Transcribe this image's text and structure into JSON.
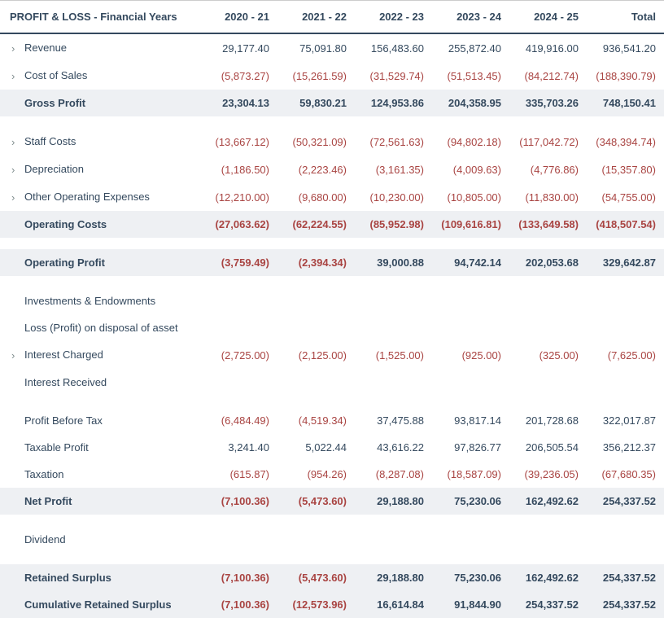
{
  "header": [
    "PROFIT & LOSS - Financial Years",
    "2020 - 21",
    "2021 - 22",
    "2022 - 23",
    "2023 - 24",
    "2024 - 25",
    "Total"
  ],
  "rows": [
    {
      "label": "Revenue",
      "expandable": true,
      "bold": false,
      "shade": false,
      "vals": [
        "29,177.40",
        "75,091.80",
        "156,483.60",
        "255,872.40",
        "419,916.00",
        "936,541.20"
      ],
      "neg": [
        false,
        false,
        false,
        false,
        false,
        false
      ]
    },
    {
      "label": "Cost of Sales",
      "expandable": true,
      "bold": false,
      "shade": false,
      "vals": [
        "(5,873.27)",
        "(15,261.59)",
        "(31,529.74)",
        "(51,513.45)",
        "(84,212.74)",
        "(188,390.79)"
      ],
      "neg": [
        true,
        true,
        true,
        true,
        true,
        true
      ]
    },
    {
      "label": "Gross Profit",
      "expandable": false,
      "bold": true,
      "shade": true,
      "vals": [
        "23,304.13",
        "59,830.21",
        "124,953.86",
        "204,358.95",
        "335,703.26",
        "748,150.41"
      ],
      "neg": [
        false,
        false,
        false,
        false,
        false,
        false
      ]
    },
    {
      "spacer": true
    },
    {
      "label": "Staff Costs",
      "expandable": true,
      "bold": false,
      "shade": false,
      "vals": [
        "(13,667.12)",
        "(50,321.09)",
        "(72,561.63)",
        "(94,802.18)",
        "(117,042.72)",
        "(348,394.74)"
      ],
      "neg": [
        true,
        true,
        true,
        true,
        true,
        true
      ]
    },
    {
      "label": "Depreciation",
      "expandable": true,
      "bold": false,
      "shade": false,
      "vals": [
        "(1,186.50)",
        "(2,223.46)",
        "(3,161.35)",
        "(4,009.63)",
        "(4,776.86)",
        "(15,357.80)"
      ],
      "neg": [
        true,
        true,
        true,
        true,
        true,
        true
      ]
    },
    {
      "label": "Other Operating Expenses",
      "expandable": true,
      "bold": false,
      "shade": false,
      "vals": [
        "(12,210.00)",
        "(9,680.00)",
        "(10,230.00)",
        "(10,805.00)",
        "(11,830.00)",
        "(54,755.00)"
      ],
      "neg": [
        true,
        true,
        true,
        true,
        true,
        true
      ]
    },
    {
      "label": "Operating Costs",
      "expandable": false,
      "bold": true,
      "shade": true,
      "vals": [
        "(27,063.62)",
        "(62,224.55)",
        "(85,952.98)",
        "(109,616.81)",
        "(133,649.58)",
        "(418,507.54)"
      ],
      "neg": [
        true,
        true,
        true,
        true,
        true,
        true
      ]
    },
    {
      "spacer": true
    },
    {
      "label": "Operating Profit",
      "expandable": false,
      "bold": true,
      "shade": true,
      "vals": [
        "(3,759.49)",
        "(2,394.34)",
        "39,000.88",
        "94,742.14",
        "202,053.68",
        "329,642.87"
      ],
      "neg": [
        true,
        true,
        false,
        false,
        false,
        false
      ]
    },
    {
      "spacer": true
    },
    {
      "label": "Investments & Endowments",
      "expandable": false,
      "bold": false,
      "shade": false,
      "vals": [
        "",
        "",
        "",
        "",
        "",
        ""
      ],
      "neg": [
        false,
        false,
        false,
        false,
        false,
        false
      ]
    },
    {
      "label": "Loss (Profit) on disposal of asset",
      "expandable": false,
      "bold": false,
      "shade": false,
      "vals": [
        "",
        "",
        "",
        "",
        "",
        ""
      ],
      "neg": [
        false,
        false,
        false,
        false,
        false,
        false
      ]
    },
    {
      "label": "Interest Charged",
      "expandable": true,
      "bold": false,
      "shade": false,
      "vals": [
        "(2,725.00)",
        "(2,125.00)",
        "(1,525.00)",
        "(925.00)",
        "(325.00)",
        "(7,625.00)"
      ],
      "neg": [
        true,
        true,
        true,
        true,
        true,
        true
      ]
    },
    {
      "label": "Interest Received",
      "expandable": false,
      "bold": false,
      "shade": false,
      "vals": [
        "",
        "",
        "",
        "",
        "",
        ""
      ],
      "neg": [
        false,
        false,
        false,
        false,
        false,
        false
      ]
    },
    {
      "spacer": true
    },
    {
      "label": "Profit Before Tax",
      "expandable": false,
      "bold": false,
      "shade": false,
      "vals": [
        "(6,484.49)",
        "(4,519.34)",
        "37,475.88",
        "93,817.14",
        "201,728.68",
        "322,017.87"
      ],
      "neg": [
        true,
        true,
        false,
        false,
        false,
        false
      ]
    },
    {
      "label": "Taxable Profit",
      "expandable": false,
      "bold": false,
      "shade": false,
      "vals": [
        "3,241.40",
        "5,022.44",
        "43,616.22",
        "97,826.77",
        "206,505.54",
        "356,212.37"
      ],
      "neg": [
        false,
        false,
        false,
        false,
        false,
        false
      ]
    },
    {
      "label": "Taxation",
      "expandable": false,
      "bold": false,
      "shade": false,
      "vals": [
        "(615.87)",
        "(954.26)",
        "(8,287.08)",
        "(18,587.09)",
        "(39,236.05)",
        "(67,680.35)"
      ],
      "neg": [
        true,
        true,
        true,
        true,
        true,
        true
      ]
    },
    {
      "label": "Net Profit",
      "expandable": false,
      "bold": true,
      "shade": true,
      "vals": [
        "(7,100.36)",
        "(5,473.60)",
        "29,188.80",
        "75,230.06",
        "162,492.62",
        "254,337.52"
      ],
      "neg": [
        true,
        true,
        false,
        false,
        false,
        false
      ]
    },
    {
      "spacer": true
    },
    {
      "label": "Dividend",
      "expandable": false,
      "bold": false,
      "shade": false,
      "vals": [
        "",
        "",
        "",
        "",
        "",
        ""
      ],
      "neg": [
        false,
        false,
        false,
        false,
        false,
        false
      ]
    },
    {
      "spacer": true
    },
    {
      "label": "Retained Surplus",
      "expandable": false,
      "bold": true,
      "shade": true,
      "vals": [
        "(7,100.36)",
        "(5,473.60)",
        "29,188.80",
        "75,230.06",
        "162,492.62",
        "254,337.52"
      ],
      "neg": [
        true,
        true,
        false,
        false,
        false,
        false
      ]
    },
    {
      "label": "Cumulative Retained Surplus",
      "expandable": false,
      "bold": true,
      "shade": true,
      "vals": [
        "(7,100.36)",
        "(12,573.96)",
        "16,614.84",
        "91,844.90",
        "254,337.52",
        "254,337.52"
      ],
      "neg": [
        true,
        true,
        false,
        false,
        false,
        false
      ]
    }
  ]
}
